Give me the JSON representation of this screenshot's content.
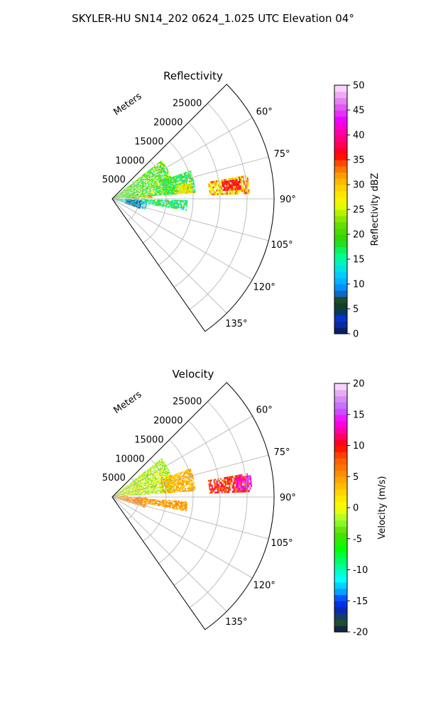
{
  "figure": {
    "suptitle": "SKYLER-HU  SN14_202  0624_1.025 UTC Elevation 04°"
  },
  "chart_data": [
    {
      "type": "heatmap",
      "subtype": "polar-sector-ppi",
      "title": "Reflectivity",
      "r_axis_label": "Meters",
      "r_ticks": [
        5000,
        10000,
        15000,
        20000,
        25000
      ],
      "r_tick_labels": [
        "5000",
        "10000",
        "15000",
        "20000",
        "25000"
      ],
      "r_lim": [
        0,
        30000
      ],
      "theta_ticks": [
        60,
        75,
        90,
        105,
        120,
        135
      ],
      "theta_tick_labels": [
        "60°",
        "75°",
        "90°",
        "105°",
        "120°",
        "135°"
      ],
      "theta_lim_deg": [
        45,
        145
      ],
      "grid": true,
      "colorbar": {
        "label": "Reflectivity dBZ",
        "vmin": 0,
        "vmax": 50,
        "ticks": [
          0,
          5,
          10,
          15,
          20,
          25,
          30,
          35,
          40,
          45,
          50
        ],
        "tick_labels": [
          "0",
          "5",
          "10",
          "15",
          "20",
          "25",
          "30",
          "35",
          "40",
          "45",
          "50"
        ]
      },
      "regions": [
        {
          "az": [
            52,
            86
          ],
          "r": [
            0,
            11500
          ],
          "value_range": [
            15,
            26
          ]
        },
        {
          "az": [
            70,
            86
          ],
          "r": [
            9500,
            15500
          ],
          "value_range": [
            14,
            24
          ]
        },
        {
          "az": [
            78,
            86
          ],
          "r": [
            12000,
            15000
          ],
          "value_range": [
            24,
            32
          ]
        },
        {
          "az": [
            85,
            89
          ],
          "r": [
            2500,
            7500
          ],
          "value_range": [
            18,
            36
          ]
        },
        {
          "az": [
            91,
            108
          ],
          "r": [
            500,
            6500
          ],
          "value_range": [
            8,
            18
          ]
        },
        {
          "az": [
            93,
            110
          ],
          "r": [
            2500,
            5500
          ],
          "value_range": [
            2,
            12
          ]
        },
        {
          "az": [
            91,
            99
          ],
          "r": [
            6000,
            14000
          ],
          "value_range": [
            12,
            22
          ]
        },
        {
          "az": [
            80,
            88
          ],
          "r": [
            18000,
            25500
          ],
          "value_range": [
            24,
            35
          ]
        },
        {
          "az": [
            81,
            86
          ],
          "r": [
            20500,
            24000
          ],
          "value_range": [
            34,
            38
          ]
        }
      ]
    },
    {
      "type": "heatmap",
      "subtype": "polar-sector-ppi",
      "title": "Velocity",
      "r_axis_label": "Meters",
      "r_ticks": [
        5000,
        10000,
        15000,
        20000,
        25000
      ],
      "r_tick_labels": [
        "5000",
        "10000",
        "15000",
        "20000",
        "25000"
      ],
      "r_lim": [
        0,
        30000
      ],
      "theta_ticks": [
        60,
        75,
        90,
        105,
        120,
        135
      ],
      "theta_tick_labels": [
        "60°",
        "75°",
        "90°",
        "105°",
        "120°",
        "135°"
      ],
      "theta_lim_deg": [
        45,
        145
      ],
      "grid": true,
      "colorbar": {
        "label": "Velocity (m/s)",
        "vmin": -20,
        "vmax": 20,
        "ticks": [
          -20,
          -15,
          -10,
          -5,
          0,
          5,
          10,
          15,
          20
        ],
        "tick_labels": [
          "-20",
          "-15",
          "-10",
          "-5",
          "0",
          "5",
          "10",
          "15",
          "20"
        ]
      },
      "regions": [
        {
          "az": [
            52,
            86
          ],
          "r": [
            0,
            11500
          ],
          "value_range": [
            -5,
            3
          ]
        },
        {
          "az": [
            70,
            86
          ],
          "r": [
            9500,
            15500
          ],
          "value_range": [
            2,
            6
          ]
        },
        {
          "az": [
            85,
            89
          ],
          "r": [
            500,
            3000
          ],
          "value_range": [
            4,
            8
          ]
        },
        {
          "az": [
            91,
            108
          ],
          "r": [
            500,
            6500
          ],
          "value_range": [
            4,
            8
          ]
        },
        {
          "az": [
            93,
            101
          ],
          "r": [
            6000,
            14000
          ],
          "value_range": [
            3,
            7
          ]
        },
        {
          "az": [
            80,
            88
          ],
          "r": [
            18000,
            25500
          ],
          "value_range": [
            6,
            12
          ]
        },
        {
          "az": [
            81,
            87
          ],
          "r": [
            23000,
            26000
          ],
          "value_range": [
            12,
            16
          ]
        }
      ]
    }
  ]
}
